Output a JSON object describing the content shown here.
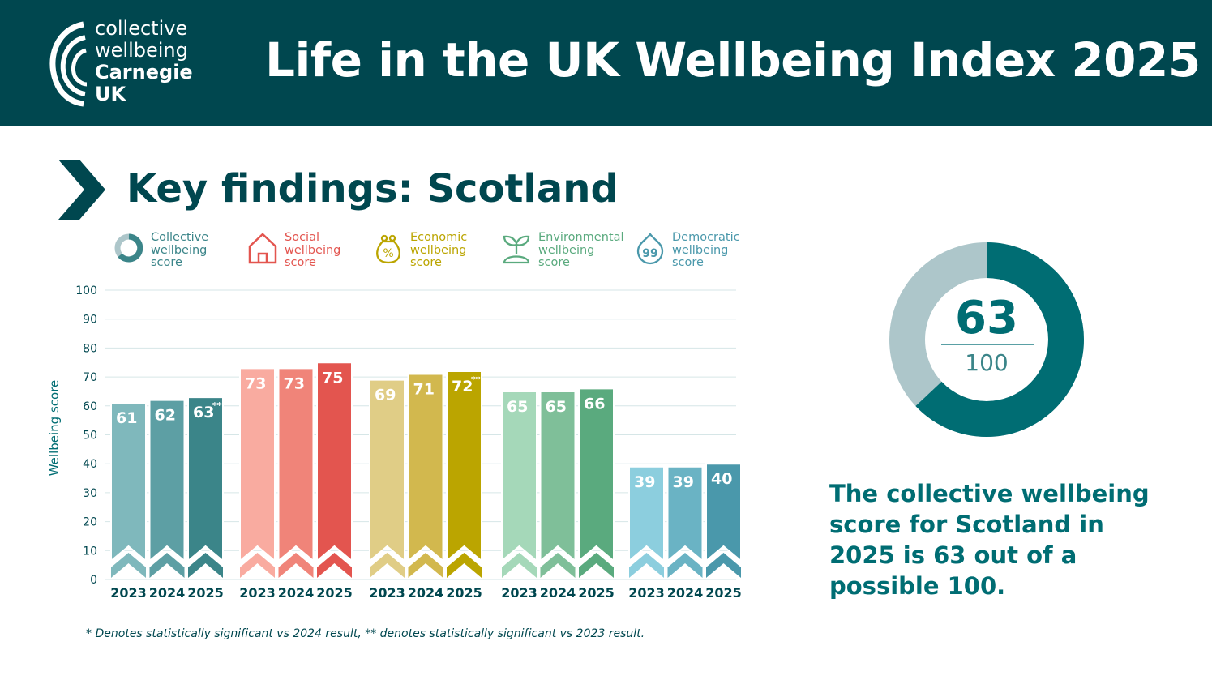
{
  "header": {
    "logo": {
      "line1": "collective",
      "line2": "wellbeing",
      "line3": "Carnegie",
      "line4": "UK"
    },
    "title": "Life in the UK Wellbeing Index 2025"
  },
  "subtitle": "Key findings: Scotland",
  "legend": [
    {
      "icon": "donut-icon",
      "l1": "Collective",
      "l2": "wellbeing",
      "l3": "score",
      "color": "#3b8589"
    },
    {
      "icon": "house-icon",
      "l1": "Social",
      "l2": "wellbeing",
      "l3": "score",
      "color": "#e3554f"
    },
    {
      "icon": "money-bag-icon",
      "l1": "Economic",
      "l2": "wellbeing",
      "l3": "score",
      "color": "#bba500"
    },
    {
      "icon": "sprout-icon",
      "l1": "Environmental",
      "l2": "wellbeing",
      "l3": "score",
      "color": "#5aaa7e"
    },
    {
      "icon": "speech-drop-icon",
      "l1": "Democratic",
      "l2": "wellbeing",
      "l3": "score",
      "color": "#4a98ab"
    }
  ],
  "chart_data": {
    "type": "bar",
    "ylabel": "Wellbeing score",
    "ylim": [
      0,
      100
    ],
    "yticks": [
      "0",
      "10",
      "20",
      "30",
      "40",
      "50",
      "60",
      "70",
      "80",
      "90",
      "100"
    ],
    "grid": true,
    "groups": [
      {
        "name": "Collective wellbeing score",
        "years": [
          "2023",
          "2024",
          "2025"
        ],
        "values": [
          61,
          62,
          63
        ],
        "labels": [
          "61",
          "62",
          "63"
        ],
        "marks": [
          "",
          "",
          "**"
        ],
        "colors": [
          "#7fb8bc",
          "#5d9fa4",
          "#3b8589"
        ]
      },
      {
        "name": "Social wellbeing score",
        "years": [
          "2023",
          "2024",
          "2025"
        ],
        "values": [
          73,
          73,
          75
        ],
        "labels": [
          "73",
          "73",
          "75"
        ],
        "marks": [
          "",
          "",
          ""
        ],
        "colors": [
          "#f9aba0",
          "#f08479",
          "#e3554f"
        ]
      },
      {
        "name": "Economic wellbeing score",
        "years": [
          "2023",
          "2024",
          "2025"
        ],
        "values": [
          69,
          71,
          72
        ],
        "labels": [
          "69",
          "71",
          "72"
        ],
        "marks": [
          "",
          "",
          "**"
        ],
        "colors": [
          "#e0cd86",
          "#d2b84e",
          "#bba500"
        ]
      },
      {
        "name": "Environmental wellbeing score",
        "years": [
          "2023",
          "2024",
          "2025"
        ],
        "values": [
          65,
          65,
          66
        ],
        "labels": [
          "65",
          "65",
          "66"
        ],
        "marks": [
          "",
          "",
          ""
        ],
        "colors": [
          "#a5d8b9",
          "#7fbf99",
          "#5aaa7e"
        ]
      },
      {
        "name": "Democratic wellbeing score",
        "years": [
          "2023",
          "2024",
          "2025"
        ],
        "values": [
          39,
          39,
          40
        ],
        "labels": [
          "39",
          "39",
          "40"
        ],
        "marks": [
          "",
          "",
          ""
        ],
        "colors": [
          "#8ccede",
          "#6ab3c4",
          "#4a98ab"
        ]
      }
    ]
  },
  "footnote": "* Denotes statistically significant vs 2024 result, ** denotes statistically significant vs 2023 result.",
  "donut": {
    "value": 63,
    "max": 100,
    "value_label": "63",
    "max_label": "100",
    "fill": "#006d73",
    "track": "#adc6ca"
  },
  "caption": "The collective wellbeing score for Scotland in 2025 is 63 out of a possible 100."
}
